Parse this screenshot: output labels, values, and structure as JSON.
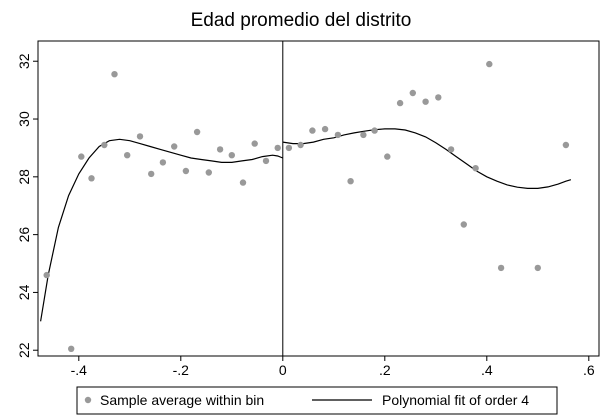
{
  "chart_data": {
    "type": "scatter",
    "title": "Edad promedio del distrito",
    "xlabel": "",
    "ylabel": "",
    "xlim": [
      -0.48,
      0.62
    ],
    "ylim": [
      21.8,
      32.7
    ],
    "x_ticks": [
      -0.4,
      -0.2,
      0,
      0.2,
      0.4,
      0.6
    ],
    "x_tick_labels": [
      "-.4",
      "-.2",
      "0",
      ".2",
      ".4",
      ".6"
    ],
    "y_ticks": [
      22,
      24,
      26,
      28,
      30,
      32
    ],
    "y_tick_labels": [
      "22",
      "24",
      "26",
      "28",
      "30",
      "32"
    ],
    "grid": false,
    "cutoff": 0,
    "legend_position": "bottom",
    "series": [
      {
        "name": "Sample average within bin",
        "kind": "scatter",
        "color": "#999999",
        "points": [
          [
            -0.463,
            24.6
          ],
          [
            -0.415,
            22.05
          ],
          [
            -0.395,
            28.7
          ],
          [
            -0.375,
            27.95
          ],
          [
            -0.35,
            29.1
          ],
          [
            -0.33,
            31.55
          ],
          [
            -0.305,
            28.75
          ],
          [
            -0.28,
            29.4
          ],
          [
            -0.258,
            28.1
          ],
          [
            -0.235,
            28.5
          ],
          [
            -0.213,
            29.05
          ],
          [
            -0.19,
            28.2
          ],
          [
            -0.168,
            29.55
          ],
          [
            -0.145,
            28.15
          ],
          [
            -0.123,
            28.95
          ],
          [
            -0.1,
            28.75
          ],
          [
            -0.078,
            27.8
          ],
          [
            -0.055,
            29.15
          ],
          [
            -0.033,
            28.55
          ],
          [
            -0.01,
            29.0
          ],
          [
            0.012,
            29.0
          ],
          [
            0.035,
            29.1
          ],
          [
            0.058,
            29.6
          ],
          [
            0.083,
            29.65
          ],
          [
            0.108,
            29.45
          ],
          [
            0.133,
            27.85
          ],
          [
            0.158,
            29.45
          ],
          [
            0.18,
            29.6
          ],
          [
            0.205,
            28.7
          ],
          [
            0.23,
            30.55
          ],
          [
            0.255,
            30.9
          ],
          [
            0.28,
            30.6
          ],
          [
            0.305,
            30.75
          ],
          [
            0.33,
            28.95
          ],
          [
            0.355,
            26.35
          ],
          [
            0.378,
            28.3
          ],
          [
            0.405,
            31.9
          ],
          [
            0.428,
            24.85
          ],
          [
            0.5,
            24.85
          ],
          [
            0.555,
            29.1
          ]
        ]
      },
      {
        "name": "Polynomial fit of order 4",
        "kind": "line",
        "color": "#000000",
        "segments": [
          [
            [
              -0.475,
              23.0
            ],
            [
              -0.46,
              24.6
            ],
            [
              -0.44,
              26.25
            ],
            [
              -0.42,
              27.35
            ],
            [
              -0.4,
              28.1
            ],
            [
              -0.38,
              28.65
            ],
            [
              -0.36,
              29.05
            ],
            [
              -0.34,
              29.25
            ],
            [
              -0.32,
              29.3
            ],
            [
              -0.3,
              29.25
            ],
            [
              -0.28,
              29.15
            ],
            [
              -0.26,
              29.05
            ],
            [
              -0.24,
              28.95
            ],
            [
              -0.22,
              28.85
            ],
            [
              -0.2,
              28.75
            ],
            [
              -0.18,
              28.65
            ],
            [
              -0.16,
              28.6
            ],
            [
              -0.14,
              28.55
            ],
            [
              -0.12,
              28.5
            ],
            [
              -0.1,
              28.5
            ],
            [
              -0.08,
              28.55
            ],
            [
              -0.06,
              28.6
            ],
            [
              -0.04,
              28.7
            ],
            [
              -0.02,
              28.75
            ],
            [
              -0.01,
              28.72
            ],
            [
              0.0,
              28.65
            ]
          ],
          [
            [
              0.0,
              29.2
            ],
            [
              0.02,
              29.15
            ],
            [
              0.04,
              29.15
            ],
            [
              0.06,
              29.2
            ],
            [
              0.08,
              29.3
            ],
            [
              0.1,
              29.35
            ],
            [
              0.12,
              29.45
            ],
            [
              0.14,
              29.52
            ],
            [
              0.16,
              29.58
            ],
            [
              0.18,
              29.63
            ],
            [
              0.2,
              29.66
            ],
            [
              0.22,
              29.66
            ],
            [
              0.24,
              29.62
            ],
            [
              0.26,
              29.52
            ],
            [
              0.28,
              29.38
            ],
            [
              0.3,
              29.18
            ],
            [
              0.32,
              28.95
            ],
            [
              0.34,
              28.7
            ],
            [
              0.36,
              28.45
            ],
            [
              0.38,
              28.2
            ],
            [
              0.4,
              28.0
            ],
            [
              0.42,
              27.85
            ],
            [
              0.44,
              27.72
            ],
            [
              0.46,
              27.64
            ],
            [
              0.48,
              27.6
            ],
            [
              0.5,
              27.6
            ],
            [
              0.52,
              27.65
            ],
            [
              0.54,
              27.75
            ],
            [
              0.555,
              27.85
            ],
            [
              0.565,
              27.9
            ]
          ]
        ]
      }
    ]
  }
}
